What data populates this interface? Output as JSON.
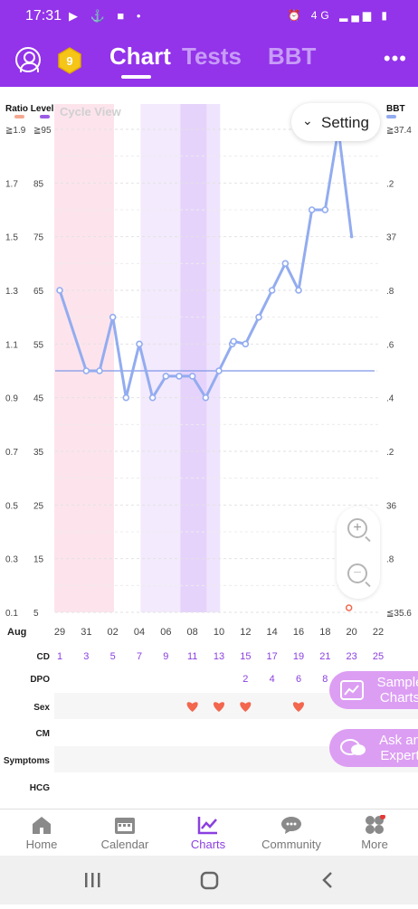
{
  "status_bar": {
    "time": "17:31",
    "network": "4G"
  },
  "header": {
    "badge_number": "9",
    "tabs": [
      "Chart",
      "Tests",
      "BBT"
    ],
    "active_tab": "Chart"
  },
  "chart_controls": {
    "setting_label": "Setting"
  },
  "chart_data": {
    "type": "line",
    "view_label": "Cycle View",
    "left_axis_title": "Ratio Level",
    "right_axis_title": "BBT",
    "ratio_ticks": [
      "≧1.9",
      "1.7",
      "1.5",
      "1.3",
      "1.1",
      "0.9",
      "0.7",
      "0.5",
      "0.3",
      "0.1"
    ],
    "level_ticks": [
      "≧95",
      "85",
      "75",
      "65",
      "55",
      "45",
      "35",
      "25",
      "15",
      "5"
    ],
    "bbt_ticks": [
      "≧37.4",
      ".2",
      "37",
      ".8",
      ".6",
      ".4",
      ".2",
      "36",
      ".8",
      "≦35.6"
    ],
    "ylim": [
      5,
      95
    ],
    "baseline_level": 50,
    "month_label": "Aug",
    "dates": [
      "29",
      "31",
      "02",
      "04",
      "06",
      "08",
      "10",
      "12",
      "14",
      "16",
      "18",
      "20",
      "22"
    ],
    "cd": [
      "1",
      "3",
      "5",
      "7",
      "9",
      "11",
      "13",
      "15",
      "17",
      "19",
      "21",
      "23",
      "25"
    ],
    "dpo": [
      "",
      "",
      "",
      "",
      "",
      "",
      "",
      "2",
      "4",
      "6",
      "8",
      "",
      ""
    ],
    "row_labels": [
      "CD",
      "DPO",
      "Sex",
      "CM",
      "Symptoms",
      "HCG"
    ],
    "series": [
      {
        "cd": [
          1,
          3,
          4,
          5,
          6,
          7,
          8,
          9,
          10,
          11,
          12,
          13,
          14,
          14.1,
          15,
          16,
          17,
          18,
          19,
          20,
          21,
          22,
          23
        ],
        "level": [
          65,
          50,
          50,
          60,
          45,
          55,
          45,
          49,
          49,
          49,
          45,
          50,
          55,
          55.5,
          55,
          60,
          65,
          70,
          65,
          80,
          80,
          95,
          75
        ]
      }
    ],
    "sex_days": [
      11,
      13,
      15,
      19
    ],
    "bbt_marker_cd": 23,
    "shaded_bands": [
      {
        "from": 1,
        "to": 5.5,
        "color": "#fde4ec"
      },
      {
        "from": 7.5,
        "to": 10.5,
        "color": "#f3eafd"
      },
      {
        "from": 10.5,
        "to": 12.5,
        "color": "#e6d3fb"
      },
      {
        "from": 12.5,
        "to": 13.5,
        "color": "#efe4fd"
      }
    ],
    "line_color": "#93acf0",
    "heart_color": "#f2674e"
  },
  "float_buttons": {
    "sample_charts": "Sample Charts",
    "ask_expert": "Ask an Expert"
  },
  "bottom_nav": {
    "items": [
      "Home",
      "Calendar",
      "Charts",
      "Community",
      "More"
    ],
    "active": "Charts"
  }
}
